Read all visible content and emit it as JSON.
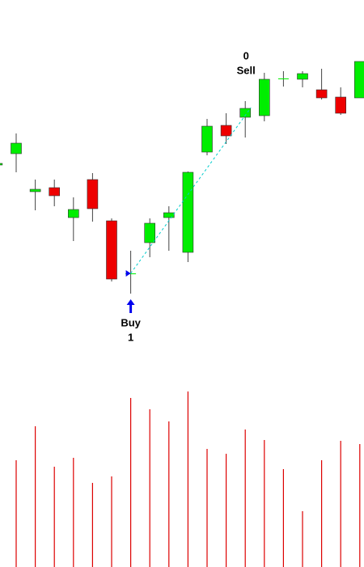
{
  "chart_data": {
    "type": "candlestick",
    "open": [
      497,
      511,
      464,
      469,
      432,
      479,
      428,
      363,
      401,
      432,
      389,
      513,
      546,
      556,
      558,
      604,
      603,
      590,
      581,
      580
    ],
    "high": [
      501,
      536,
      479,
      479,
      457,
      487,
      431,
      391,
      431,
      446,
      489,
      554,
      561,
      576,
      611,
      613,
      613,
      616,
      593,
      625
    ],
    "low": [
      495,
      488,
      441,
      446,
      403,
      427,
      353,
      338,
      383,
      391,
      377,
      509,
      523,
      531,
      551,
      594,
      593,
      578,
      559,
      580
    ],
    "close": [
      499,
      524,
      467,
      459,
      442,
      443,
      356,
      363,
      425,
      438,
      488,
      545,
      533,
      567,
      603,
      604,
      610,
      580,
      561,
      625
    ],
    "volume": [
      null,
      132,
      174,
      124,
      135,
      104,
      112,
      209,
      195,
      180,
      217,
      146,
      140,
      170,
      157,
      121,
      69,
      132,
      156,
      152
    ],
    "ylim": [
      0,
      701
    ],
    "vlim": [
      0,
      231
    ],
    "up_color": "#00ee00",
    "down_color": "#ee0000",
    "volume_color": "#dd0000",
    "trade_color": "#00cccc",
    "trades": [
      {
        "label": "Buy",
        "qty": 1,
        "bar": 7,
        "price": 363,
        "color": "#0000ee"
      },
      {
        "label": "Sell",
        "qty": 0,
        "bar": 13,
        "price": 568,
        "color": "#000000"
      }
    ]
  }
}
